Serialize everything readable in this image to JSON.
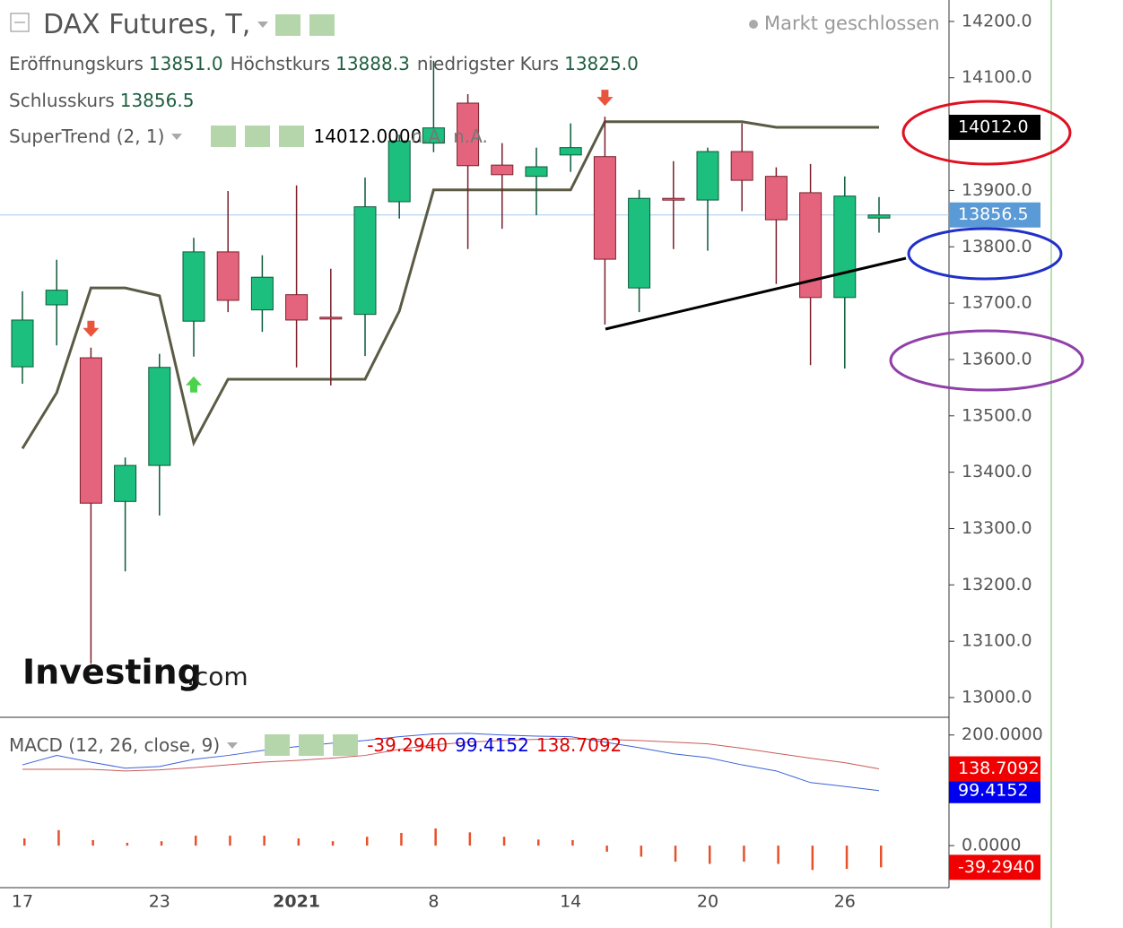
{
  "chart_data": [
    {
      "type": "candlestick",
      "title": "DAX Futures, T,",
      "status": "Markt geschlossen",
      "categories": [
        "17",
        null,
        null,
        null,
        "23",
        null,
        null,
        null,
        "2021",
        null,
        null,
        null,
        "8",
        null,
        null,
        null,
        "14",
        null,
        null,
        null,
        "20",
        null,
        null,
        null,
        "26",
        null
      ],
      "open": [
        13587,
        13697,
        13603,
        13348,
        13412,
        13668,
        13791,
        13688,
        13715,
        13675,
        13680,
        13880,
        13984,
        14055,
        13945,
        13925,
        13963,
        13960,
        13727,
        13886,
        13883,
        13969,
        13925,
        13896,
        13710,
        13851
      ],
      "high": [
        13721,
        13777,
        13621,
        13426,
        13610,
        13816,
        13899,
        13785,
        13909,
        13761,
        13923,
        13999,
        14130,
        14071,
        13984,
        13976,
        14019,
        14031,
        13901,
        13952,
        13976,
        14019,
        13941,
        13947,
        13925,
        13888.3
      ],
      "low": [
        13557,
        13625,
        13060,
        13224,
        13323,
        13605,
        13684,
        13649,
        13586,
        13554,
        13606,
        13850,
        13968,
        13796,
        13832,
        13856,
        13933,
        13662,
        13684,
        13796,
        13793,
        13863,
        13734,
        13590,
        13584,
        13825
      ],
      "close": [
        13670,
        13723,
        13345,
        13412,
        13586,
        13791,
        13705,
        13746,
        13670,
        13673,
        13871,
        13988,
        14011,
        13944,
        13928,
        13942,
        13976,
        13778,
        13886,
        13884,
        13969,
        13918,
        13848,
        13710,
        13890,
        13856.5
      ],
      "close_label": "13856.5",
      "up_color": "#1cbf7d",
      "down_color": "#e5647d",
      "up_border": "#0b5a38",
      "down_border": "#7a1f2a",
      "legend": [
        {
          "label": "Eröffnungskurs",
          "value": "13851.0"
        },
        {
          "label": "Höchstkurs",
          "value": "13888.3"
        },
        {
          "label": "niedrigster Kurs",
          "value": "13825.0"
        },
        {
          "label": "Schlusskurs",
          "value": "13856.5"
        }
      ],
      "series": [
        {
          "name": "SuperTrend (2, 1)",
          "color": "#5b5b45",
          "values": [
            13442,
            13541,
            13727,
            13727,
            13713,
            13452,
            13565,
            13565,
            13565,
            13565,
            13565,
            13686,
            13901,
            13901,
            13901,
            13901,
            13901,
            14022,
            14022,
            14022,
            14022,
            14022,
            14012,
            14012,
            14012,
            14012
          ],
          "legend_values": [
            "14012.0000",
            "n.A.",
            "n.A."
          ],
          "last_label": "14012.0",
          "buy_color": "#4cd24c",
          "sell_color": "#e8553c"
        }
      ],
      "current_line_color": "#a7c8ee",
      "current_label_color": "#5a9ad6",
      "ylim": [
        12965,
        14238
      ],
      "yticks": [
        {
          "value": 13000,
          "label": "13000.0"
        },
        {
          "value": 13100,
          "label": "13100.0"
        },
        {
          "value": 13200,
          "label": "13200.0"
        },
        {
          "value": 13300,
          "label": "13300.0"
        },
        {
          "value": 13400,
          "label": "13400.0"
        },
        {
          "value": 13500,
          "label": "13500.0"
        },
        {
          "value": 13600,
          "label": "13600.0"
        },
        {
          "value": 13700,
          "label": "13700.0"
        },
        {
          "value": 13800,
          "label": "13800.0"
        },
        {
          "value": 13900,
          "label": "13900.0"
        },
        {
          "value": 14100,
          "label": "14100.0"
        },
        {
          "value": 14200,
          "label": "14200.0"
        }
      ],
      "watermark": [
        "Investing",
        ".com"
      ]
    },
    {
      "type": "macd",
      "title": "MACD (12, 26, close, 9)",
      "ylim": [
        -76,
        232
      ],
      "yticks": [
        {
          "value": 0,
          "label": "0.0000"
        },
        {
          "value": 200,
          "label": "200.0000"
        }
      ],
      "series": [
        {
          "type": "bar",
          "color": "#e8502a",
          "label_color": "#e00000",
          "values": [
            13,
            28,
            10,
            5,
            8,
            18,
            18,
            18,
            13,
            8,
            16,
            23,
            31,
            24,
            16,
            11,
            10,
            -11,
            -20,
            -29,
            -33,
            -29,
            -33,
            -44,
            -42,
            -39.294
          ],
          "last_label": "-39.2940"
        },
        {
          "type": "line",
          "color": "#3b62d8",
          "label_color": "#0000e0",
          "values": [
            146,
            163,
            151,
            140,
            143,
            156,
            163,
            172,
            179,
            185,
            190,
            197,
            202,
            203,
            200,
            198,
            197,
            187,
            177,
            166,
            159,
            146,
            135,
            114,
            107,
            99.4152
          ],
          "last_label": "99.4152"
        },
        {
          "type": "line",
          "color": "#c85a5a",
          "label_color": "#e00000",
          "values": [
            138,
            138,
            138,
            135,
            137,
            141,
            146,
            151,
            154,
            158,
            163,
            174,
            182,
            187,
            190,
            192,
            193,
            192,
            190,
            187,
            184,
            176,
            167,
            158,
            150,
            138.7092
          ],
          "last_label": "138.7092"
        }
      ]
    }
  ]
}
